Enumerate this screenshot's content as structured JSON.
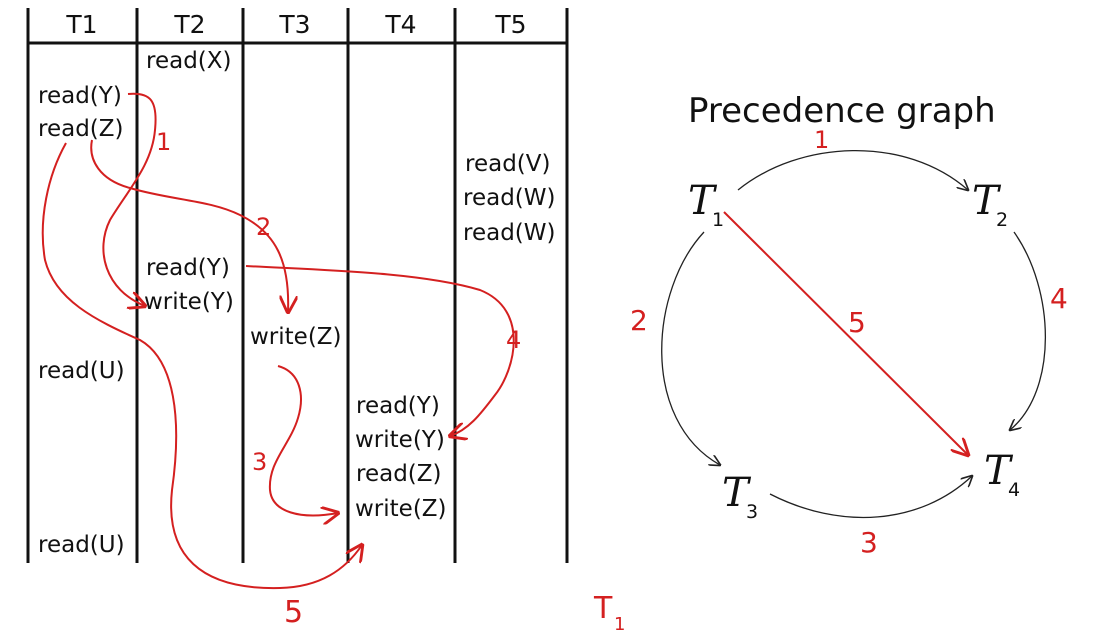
{
  "schedule": {
    "columns": [
      {
        "label": "T1",
        "ops": [
          "read(Y)",
          "read(Z)",
          "read(U)",
          "read(U)"
        ]
      },
      {
        "label": "T2",
        "ops": [
          "read(X)",
          "read(Y)",
          "write(Y)"
        ]
      },
      {
        "label": "T3",
        "ops": [
          "write(Z)"
        ]
      },
      {
        "label": "T4",
        "ops": [
          "read(Y)",
          "write(Y)",
          "read(Z)",
          "write(Z)"
        ]
      },
      {
        "label": "T5",
        "ops": [
          "read(V)",
          "read(W)",
          "read(W)"
        ]
      }
    ],
    "conflict_labels": [
      "1",
      "2",
      "3",
      "4",
      "5"
    ]
  },
  "graph": {
    "title": "Precedence graph",
    "nodes": [
      {
        "letter": "T",
        "sub": "1"
      },
      {
        "letter": "T",
        "sub": "2"
      },
      {
        "letter": "T",
        "sub": "3"
      },
      {
        "letter": "T",
        "sub": "4"
      }
    ],
    "edges": [
      {
        "from": "T1",
        "to": "T2",
        "label": "1"
      },
      {
        "from": "T1",
        "to": "T3",
        "label": "2"
      },
      {
        "from": "T3",
        "to": "T4",
        "label": "3"
      },
      {
        "from": "T2",
        "to": "T4",
        "label": "4"
      },
      {
        "from": "T1",
        "to": "T4",
        "label": "5"
      }
    ]
  },
  "scribble": {
    "letter": "T",
    "sub": "1"
  },
  "colors": {
    "ink": "#111111",
    "annotation": "#d42020"
  }
}
